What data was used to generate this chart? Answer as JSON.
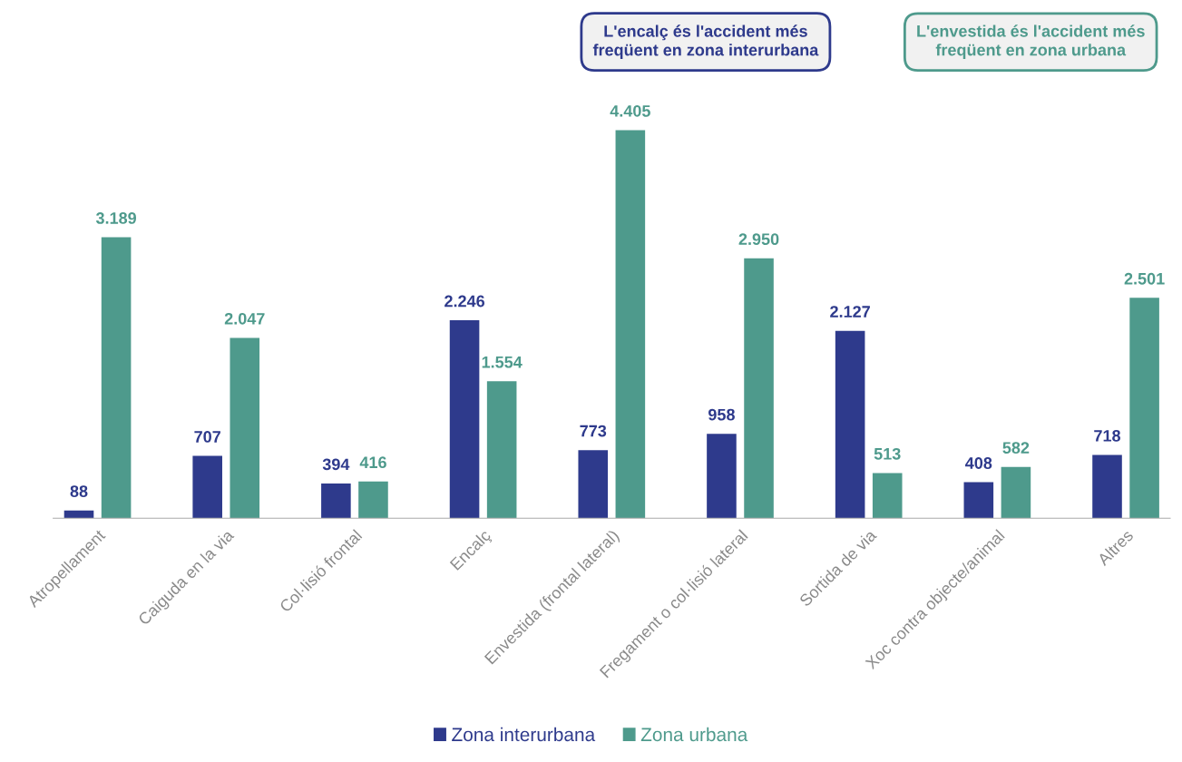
{
  "chart_data": {
    "type": "bar",
    "categories": [
      "Atropellament",
      "Caiguda en la via",
      "Col·lisió frontal",
      "Encalç",
      "Envestida (frontal lateral)",
      "Fregament o col·lisió lateral",
      "Sortida de via",
      "Xoc contra objecte/animal",
      "Altres"
    ],
    "series": [
      {
        "name": "Zona interurbana",
        "color": "#2e3a8c",
        "values": [
          88,
          707,
          394,
          2246,
          773,
          958,
          2127,
          408,
          718
        ],
        "value_labels": [
          "88",
          "707",
          "394",
          "2.246",
          "773",
          "958",
          "2.127",
          "408",
          "718"
        ]
      },
      {
        "name": "Zona urbana",
        "color": "#4e9a8c",
        "values": [
          3189,
          2047,
          416,
          1554,
          4405,
          2950,
          513,
          582,
          2501
        ],
        "value_labels": [
          "3.189",
          "2.047",
          "416",
          "1.554",
          "4.405",
          "2.950",
          "513",
          "582",
          "2.501"
        ]
      }
    ],
    "annotations": [
      "L'encalç és l'accident més\nfreqüent en zona interurbana",
      "L'envestida és l'accident més\nfreqüent en zona urbana"
    ],
    "legend": "bottom",
    "grid": false
  }
}
